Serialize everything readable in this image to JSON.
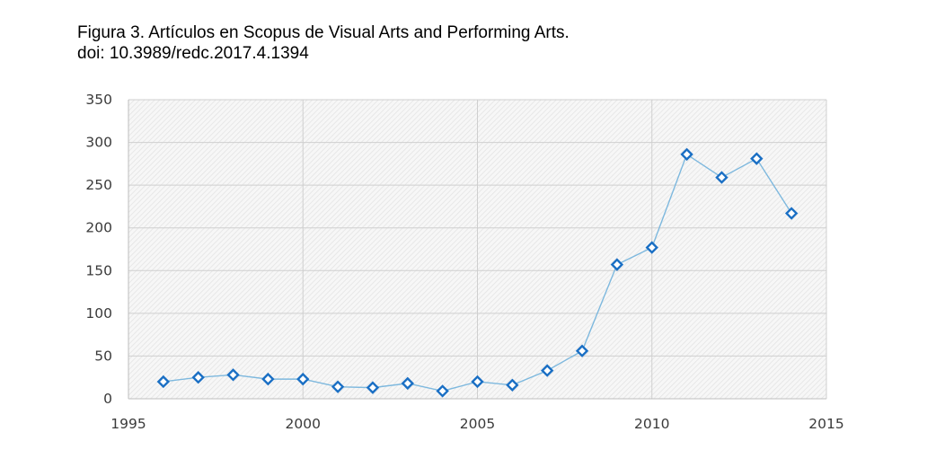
{
  "caption": {
    "line1": "Figura 3. Artículos en Scopus de Visual Arts and Performing Arts.",
    "line2": "doi: 10.3989/redc.2017.4.1394"
  },
  "colors": {
    "line": "#7db8de",
    "marker": "#1a6fc4",
    "grid": "#cfcfcf",
    "hatch": "#e4e4e4",
    "background": "#f7f7f7"
  },
  "chart_data": {
    "type": "line",
    "title": "",
    "xlabel": "",
    "ylabel": "",
    "xlim": [
      1995,
      2015
    ],
    "ylim": [
      0,
      350
    ],
    "xticks": [
      1995,
      2000,
      2005,
      2010,
      2015
    ],
    "yticks": [
      0,
      50,
      100,
      150,
      200,
      250,
      300,
      350
    ],
    "grid": true,
    "legend": "none",
    "marker": "diamond-open",
    "series": [
      {
        "x": [
          1996,
          1997,
          1998,
          1999,
          2000,
          2001,
          2002,
          2003,
          2004,
          2005,
          2006,
          2007,
          2008,
          2009,
          2010,
          2011,
          2012,
          2013,
          2014
        ],
        "y": [
          20,
          25,
          28,
          23,
          23,
          14,
          13,
          18,
          9,
          20,
          16,
          33,
          56,
          157,
          177,
          286,
          259,
          281,
          217
        ]
      }
    ]
  }
}
